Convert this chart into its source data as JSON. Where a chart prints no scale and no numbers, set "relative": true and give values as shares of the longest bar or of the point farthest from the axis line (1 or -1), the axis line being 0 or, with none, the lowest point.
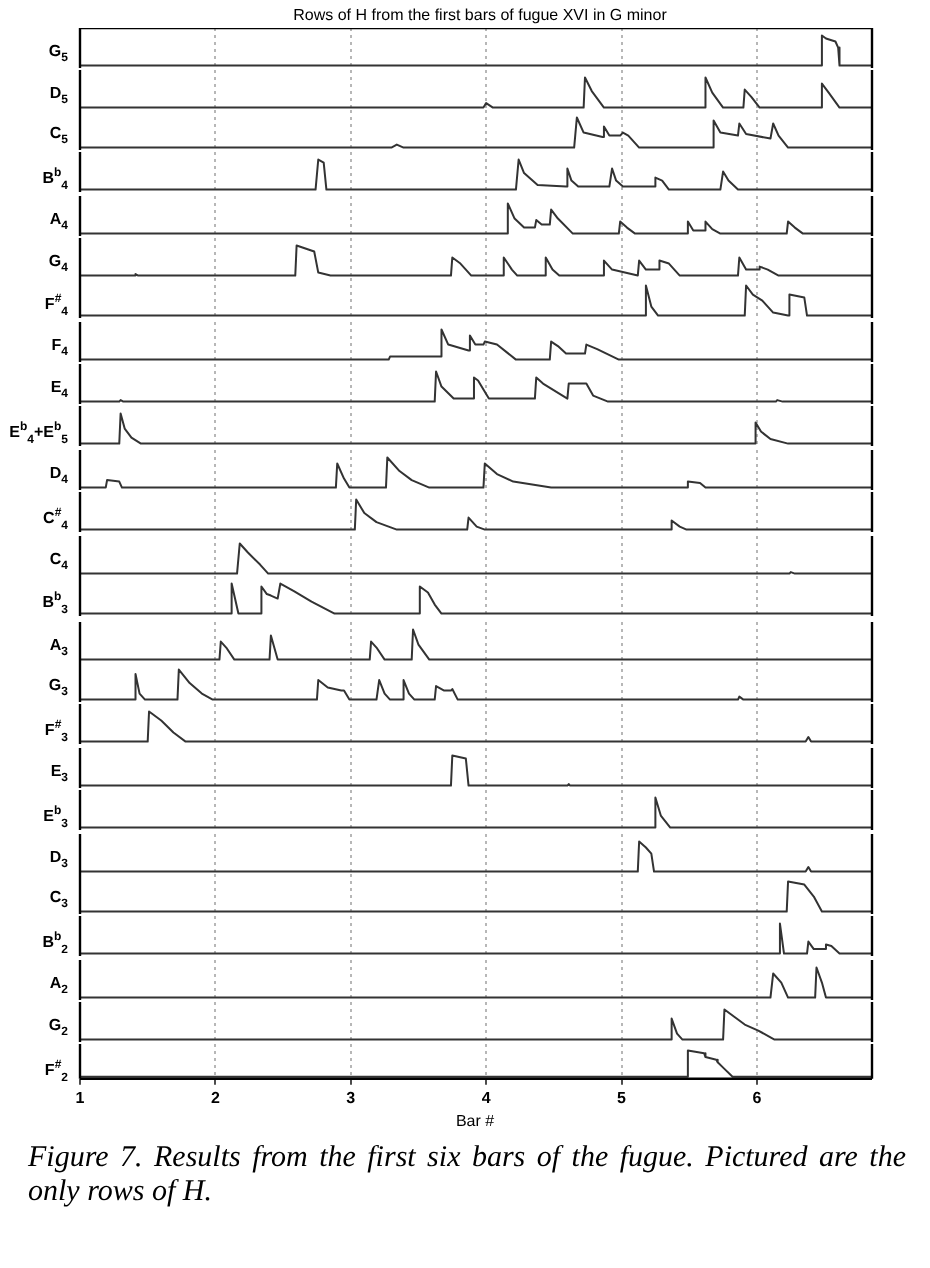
{
  "chart_data": [
    {
      "type": "line",
      "title": "Rows of H from the first bars of fugue XVI in G minor",
      "ylabel": "G$_{5}$",
      "color": "#333333",
      "relative": true,
      "grid": "x",
      "tick_labels": false,
      "xlim": [
        1,
        6.85
      ],
      "xticks": [
        1,
        2,
        3,
        4,
        5,
        6
      ],
      "x": [
        1,
        6.47,
        6.48,
        6.51,
        6.58,
        6.6,
        6.61,
        6.85
      ],
      "values": [
        0,
        0,
        1,
        0.9,
        0.8,
        0.6,
        0,
        0
      ]
    },
    {
      "type": "line",
      "ylabel": "D$_{5}$",
      "color": "#333333",
      "relative": true,
      "grid": "x",
      "tick_labels": false,
      "xlim": [
        1,
        6.85
      ],
      "xticks": [
        1,
        2,
        3,
        4,
        5,
        6
      ],
      "x": [
        1,
        3.98,
        4.0,
        4.05,
        4.72,
        4.73,
        4.78,
        4.87,
        5.61,
        5.62,
        5.67,
        5.75,
        5.9,
        5.91,
        5.96,
        6.02,
        6.47,
        6.48,
        6.53,
        6.61,
        6.85
      ],
      "values": [
        0,
        0,
        0.15,
        0,
        0,
        1,
        0.55,
        0,
        0,
        1,
        0.5,
        0,
        0,
        0.6,
        0.35,
        0,
        0,
        0.8,
        0.5,
        0,
        0
      ]
    },
    {
      "type": "line",
      "ylabel": "C$_{5}$",
      "color": "#333333",
      "relative": true,
      "grid": "x",
      "tick_labels": false,
      "xlim": [
        1,
        6.85
      ],
      "xticks": [
        1,
        2,
        3,
        4,
        5,
        6
      ],
      "x": [
        1,
        3.3,
        3.34,
        3.39,
        4.65,
        4.67,
        4.72,
        4.86,
        4.87,
        4.91,
        4.99,
        5.01,
        5.05,
        5.13,
        5.67,
        5.68,
        5.73,
        5.86,
        5.87,
        5.92,
        6.1,
        6.12,
        6.16,
        6.23,
        6.85
      ],
      "values": [
        0,
        0,
        0.1,
        0,
        0,
        1,
        0.5,
        0.35,
        0.7,
        0.4,
        0.4,
        0.5,
        0.4,
        0,
        0,
        0.9,
        0.5,
        0.4,
        0.8,
        0.45,
        0.3,
        0.8,
        0.4,
        0,
        0
      ]
    },
    {
      "type": "line",
      "ylabel": "B$^{b}$$_{4}$",
      "color": "#333333",
      "relative": true,
      "grid": "x",
      "tick_labels": false,
      "xlim": [
        1,
        6.85
      ],
      "xticks": [
        1,
        2,
        3,
        4,
        5,
        6
      ],
      "x": [
        1,
        2.74,
        2.76,
        2.8,
        2.82,
        4.22,
        4.24,
        4.28,
        4.38,
        4.59,
        4.6,
        4.63,
        4.68,
        4.91,
        4.93,
        4.96,
        5.01,
        5.24,
        5.25,
        5.3,
        5.35,
        5.73,
        5.75,
        5.79,
        5.86,
        6.85
      ],
      "values": [
        0,
        0,
        1,
        0.9,
        0,
        0,
        1,
        0.55,
        0.15,
        0.1,
        0.7,
        0.3,
        0.1,
        0.1,
        0.7,
        0.3,
        0.1,
        0.1,
        0.4,
        0.3,
        0,
        0,
        0.6,
        0.3,
        0,
        0
      ]
    },
    {
      "type": "line",
      "ylabel": "A$_{4}$",
      "color": "#333333",
      "relative": true,
      "grid": "x",
      "tick_labels": false,
      "xlim": [
        1,
        6.85
      ],
      "xticks": [
        1,
        2,
        3,
        4,
        5,
        6
      ],
      "x": [
        1,
        4.15,
        4.16,
        4.21,
        4.28,
        4.36,
        4.37,
        4.41,
        4.47,
        4.48,
        4.53,
        4.64,
        4.98,
        4.99,
        5.04,
        5.1,
        5.48,
        5.49,
        5.53,
        5.61,
        5.62,
        5.67,
        5.73,
        6.22,
        6.23,
        6.28,
        6.34,
        6.85
      ],
      "values": [
        0,
        0,
        1,
        0.5,
        0.2,
        0.2,
        0.45,
        0.3,
        0.3,
        0.8,
        0.5,
        0,
        0,
        0.4,
        0.2,
        0,
        0,
        0.4,
        0.1,
        0.1,
        0.4,
        0.15,
        0,
        0,
        0.4,
        0.2,
        0,
        0
      ]
    },
    {
      "type": "line",
      "ylabel": "G$_{4}$",
      "color": "#333333",
      "relative": true,
      "grid": "x",
      "tick_labels": false,
      "xlim": [
        1,
        6.85
      ],
      "xticks": [
        1,
        2,
        3,
        4,
        5,
        6
      ],
      "x": [
        1,
        1.4,
        1.41,
        1.43,
        2.59,
        2.6,
        2.73,
        2.76,
        2.85,
        3.74,
        3.75,
        3.81,
        3.89,
        4.12,
        4.13,
        4.19,
        4.23,
        4.43,
        4.44,
        4.49,
        4.54,
        4.86,
        4.87,
        4.93,
        5.12,
        5.13,
        5.18,
        5.27,
        5.28,
        5.35,
        5.43,
        5.86,
        5.87,
        5.92,
        6.01,
        6.02,
        6.08,
        6.16,
        6.85
      ],
      "values": [
        0,
        0,
        0.05,
        0,
        0,
        1,
        0.8,
        0.1,
        0,
        0,
        0.6,
        0.4,
        0,
        0,
        0.6,
        0.2,
        0,
        0,
        0.6,
        0.2,
        0,
        0,
        0.5,
        0.2,
        0,
        0.5,
        0.2,
        0.2,
        0.5,
        0.4,
        0,
        0,
        0.6,
        0.2,
        0.2,
        0.3,
        0.2,
        0,
        0
      ]
    },
    {
      "type": "line",
      "ylabel": "F$^{#}$$_{4}$",
      "color": "#333333",
      "relative": true,
      "grid": "x",
      "tick_labels": false,
      "xlim": [
        1,
        6.85
      ],
      "xticks": [
        1,
        2,
        3,
        4,
        5,
        6
      ],
      "x": [
        1,
        5.17,
        5.18,
        5.22,
        5.27,
        5.91,
        5.92,
        5.97,
        6.04,
        6.05,
        6.12,
        6.23,
        6.24,
        6.35,
        6.37,
        6.85
      ],
      "values": [
        0,
        0,
        1,
        0.3,
        0,
        0,
        1,
        0.7,
        0.5,
        0.5,
        0.1,
        0,
        0.7,
        0.6,
        0,
        0
      ]
    },
    {
      "type": "line",
      "ylabel": "F$_{4}$",
      "color": "#333333",
      "relative": true,
      "grid": "x",
      "tick_labels": false,
      "xlim": [
        1,
        6.85
      ],
      "xticks": [
        1,
        2,
        3,
        4,
        5,
        6
      ],
      "x": [
        1,
        3.28,
        3.29,
        3.66,
        3.67,
        3.72,
        3.87,
        3.88,
        3.92,
        3.98,
        3.99,
        4.08,
        4.22,
        4.47,
        4.48,
        4.53,
        4.59,
        4.73,
        4.74,
        4.82,
        4.98,
        6.85
      ],
      "values": [
        0,
        0,
        0.1,
        0.1,
        1,
        0.5,
        0.3,
        0.8,
        0.5,
        0.5,
        0.6,
        0.5,
        0,
        0,
        0.6,
        0.45,
        0.2,
        0.2,
        0.5,
        0.35,
        0,
        0
      ]
    },
    {
      "type": "line",
      "ylabel": "E$_{4}$",
      "color": "#333333",
      "relative": true,
      "grid": "x",
      "tick_labels": false,
      "xlim": [
        1,
        6.85
      ],
      "xticks": [
        1,
        2,
        3,
        4,
        5,
        6
      ],
      "x": [
        1,
        1.29,
        1.3,
        1.32,
        3.62,
        3.63,
        3.67,
        3.76,
        3.9,
        3.91,
        3.94,
        4.02,
        4.36,
        4.37,
        4.42,
        4.6,
        4.61,
        4.74,
        4.79,
        4.9,
        6.14,
        6.15,
        6.19,
        6.85
      ],
      "values": [
        0,
        0,
        0.05,
        0,
        0,
        1,
        0.5,
        0.1,
        0.1,
        0.8,
        0.7,
        0.1,
        0.1,
        0.8,
        0.6,
        0.1,
        0.6,
        0.6,
        0.2,
        0,
        0,
        0.05,
        0,
        0
      ]
    },
    {
      "type": "line",
      "ylabel": "E$^{b}$$_{4}$+E$^{b}$$_{5}$",
      "color": "#333333",
      "relative": true,
      "grid": "x",
      "tick_labels": false,
      "xlim": [
        1,
        6.85
      ],
      "xticks": [
        1,
        2,
        3,
        4,
        5,
        6
      ],
      "x": [
        1,
        1.29,
        1.3,
        1.33,
        1.38,
        1.45,
        5.98,
        5.99,
        6.03,
        6.1,
        6.23,
        6.85
      ],
      "values": [
        0,
        0,
        1,
        0.5,
        0.2,
        0,
        0,
        0.7,
        0.4,
        0.15,
        0,
        0
      ]
    },
    {
      "type": "line",
      "ylabel": "D$_{4}$",
      "color": "#333333",
      "relative": true,
      "grid": "x",
      "tick_labels": false,
      "xlim": [
        1,
        6.85
      ],
      "xticks": [
        1,
        2,
        3,
        4,
        5,
        6
      ],
      "x": [
        1,
        1.19,
        1.2,
        1.29,
        1.31,
        2.89,
        2.9,
        2.95,
        2.99,
        3.26,
        3.27,
        3.36,
        3.45,
        3.58,
        3.98,
        3.99,
        4.08,
        4.2,
        4.48,
        5.48,
        5.49,
        5.58,
        5.62,
        6.85
      ],
      "values": [
        0,
        0,
        0.25,
        0.2,
        0,
        0,
        0.8,
        0.3,
        0,
        0,
        1,
        0.55,
        0.25,
        0,
        0,
        0.8,
        0.45,
        0.2,
        0,
        0,
        0.2,
        0.15,
        0,
        0
      ]
    },
    {
      "type": "line",
      "ylabel": "C$^{#}$$_{4}$",
      "color": "#333333",
      "relative": true,
      "grid": "x",
      "tick_labels": false,
      "xlim": [
        1,
        6.85
      ],
      "xticks": [
        1,
        2,
        3,
        4,
        5,
        6
      ],
      "x": [
        1,
        3.03,
        3.04,
        3.1,
        3.19,
        3.34,
        3.86,
        3.87,
        3.93,
        3.99,
        5.36,
        5.37,
        5.43,
        5.48,
        6.85
      ],
      "values": [
        0,
        0,
        1,
        0.55,
        0.25,
        0,
        0,
        0.4,
        0.1,
        0,
        0,
        0.3,
        0.1,
        0,
        0
      ]
    },
    {
      "type": "line",
      "ylabel": "C$_{4}$",
      "color": "#333333",
      "relative": true,
      "grid": "x",
      "tick_labels": false,
      "xlim": [
        1,
        6.85
      ],
      "xticks": [
        1,
        2,
        3,
        4,
        5,
        6
      ],
      "x": [
        1,
        2.16,
        2.18,
        2.24,
        2.33,
        2.39,
        6.24,
        6.25,
        6.28,
        6.85
      ],
      "values": [
        0,
        0,
        1,
        0.7,
        0.3,
        0,
        0,
        0.05,
        0,
        0
      ]
    },
    {
      "type": "line",
      "ylabel": "B$^{b}$$_{3}$",
      "color": "#333333",
      "relative": true,
      "grid": "x",
      "tick_labels": false,
      "xlim": [
        1,
        6.85
      ],
      "xticks": [
        1,
        2,
        3,
        4,
        5,
        6
      ],
      "x": [
        1,
        2.11,
        2.12,
        2.17,
        2.33,
        2.34,
        2.38,
        2.41,
        2.46,
        2.48,
        2.58,
        2.71,
        2.88,
        3.5,
        3.51,
        3.57,
        3.62,
        3.67,
        6.85
      ],
      "values": [
        0,
        0,
        1,
        0,
        0,
        0.9,
        0.65,
        0.6,
        0.5,
        1,
        0.75,
        0.4,
        0,
        0,
        0.9,
        0.7,
        0.3,
        0,
        0
      ]
    },
    {
      "type": "line",
      "ylabel": "A$_{3}$",
      "color": "#333333",
      "relative": true,
      "grid": "x",
      "tick_labels": false,
      "xlim": [
        1,
        6.85
      ],
      "xticks": [
        1,
        2,
        3,
        4,
        5,
        6
      ],
      "x": [
        1,
        2.03,
        2.04,
        2.08,
        2.14,
        2.4,
        2.41,
        2.46,
        3.14,
        3.15,
        3.19,
        3.25,
        3.45,
        3.46,
        3.5,
        3.58,
        6.85
      ],
      "values": [
        0,
        0,
        0.6,
        0.4,
        0,
        0,
        0.8,
        0,
        0,
        0.6,
        0.4,
        0,
        0,
        1,
        0.5,
        0,
        0
      ]
    },
    {
      "type": "line",
      "ylabel": "G$_{3}$",
      "color": "#333333",
      "relative": true,
      "grid": "x",
      "tick_labels": false,
      "xlim": [
        1,
        6.85
      ],
      "xticks": [
        1,
        2,
        3,
        4,
        5,
        6
      ],
      "x": [
        1,
        1.4,
        1.41,
        1.44,
        1.48,
        1.72,
        1.73,
        1.81,
        1.9,
        1.98,
        2.75,
        2.76,
        2.83,
        2.93,
        2.95,
        2.99,
        3.19,
        3.21,
        3.25,
        3.29,
        3.38,
        3.39,
        3.43,
        3.47,
        3.62,
        3.63,
        3.69,
        3.74,
        3.75,
        3.79,
        5.86,
        5.87,
        5.9,
        6.85
      ],
      "values": [
        0,
        0,
        0.85,
        0.2,
        0,
        0,
        1,
        0.55,
        0.2,
        0,
        0,
        0.65,
        0.4,
        0.3,
        0.3,
        0,
        0,
        0.65,
        0.2,
        0,
        0,
        0.65,
        0.2,
        0,
        0,
        0.45,
        0.3,
        0.3,
        0.35,
        0,
        0,
        0.1,
        0,
        0
      ]
    },
    {
      "type": "line",
      "ylabel": "F$^{#}$$_{3}$",
      "color": "#333333",
      "relative": true,
      "grid": "x",
      "tick_labels": false,
      "xlim": [
        1,
        6.85
      ],
      "xticks": [
        1,
        2,
        3,
        4,
        5,
        6
      ],
      "x": [
        1,
        1.5,
        1.51,
        1.6,
        1.69,
        1.78,
        6.36,
        6.38,
        6.4,
        6.85
      ],
      "values": [
        0,
        0,
        1,
        0.7,
        0.3,
        0,
        0,
        0.15,
        0,
        0
      ]
    },
    {
      "type": "line",
      "ylabel": "E$_{3}$",
      "color": "#333333",
      "relative": true,
      "grid": "x",
      "tick_labels": false,
      "xlim": [
        1,
        6.85
      ],
      "xticks": [
        1,
        2,
        3,
        4,
        5,
        6
      ],
      "x": [
        1,
        3.74,
        3.75,
        3.85,
        3.87,
        4.6,
        4.61,
        4.62,
        6.85
      ],
      "values": [
        0,
        0,
        1,
        0.9,
        0,
        0,
        0.05,
        0,
        0
      ]
    },
    {
      "type": "line",
      "ylabel": "E$^{b}$$_{3}$",
      "color": "#333333",
      "relative": true,
      "grid": "x",
      "tick_labels": false,
      "xlim": [
        1,
        6.85
      ],
      "xticks": [
        1,
        2,
        3,
        4,
        5,
        6
      ],
      "x": [
        1,
        5.24,
        5.25,
        5.29,
        5.36,
        6.85
      ],
      "values": [
        0,
        0,
        1,
        0.4,
        0,
        0
      ]
    },
    {
      "type": "line",
      "ylabel": "D$_{3}$",
      "color": "#333333",
      "relative": true,
      "grid": "x",
      "tick_labels": false,
      "xlim": [
        1,
        6.85
      ],
      "xticks": [
        1,
        2,
        3,
        4,
        5,
        6
      ],
      "x": [
        1,
        5.12,
        5.13,
        5.18,
        5.22,
        5.24,
        6.36,
        6.38,
        6.4,
        6.85
      ],
      "values": [
        0,
        0,
        1,
        0.8,
        0.6,
        0,
        0,
        0.15,
        0,
        0
      ]
    },
    {
      "type": "line",
      "ylabel": "C$_{3}$",
      "color": "#333333",
      "relative": true,
      "grid": "x",
      "tick_labels": false,
      "xlim": [
        1,
        6.85
      ],
      "xticks": [
        1,
        2,
        3,
        4,
        5,
        6
      ],
      "x": [
        1,
        6.22,
        6.23,
        6.35,
        6.42,
        6.48,
        6.85
      ],
      "values": [
        0,
        0,
        1,
        0.9,
        0.5,
        0,
        0
      ]
    },
    {
      "type": "line",
      "ylabel": "B$^{b}$$_{2}$",
      "color": "#333333",
      "relative": true,
      "grid": "x",
      "tick_labels": false,
      "xlim": [
        1,
        6.85
      ],
      "xticks": [
        1,
        2,
        3,
        4,
        5,
        6
      ],
      "x": [
        1,
        6.16,
        6.17,
        6.2,
        6.37,
        6.38,
        6.42,
        6.5,
        6.51,
        6.55,
        6.61,
        6.85
      ],
      "values": [
        0,
        0,
        1,
        0,
        0,
        0.4,
        0.15,
        0.15,
        0.3,
        0.25,
        0,
        0
      ]
    },
    {
      "type": "line",
      "ylabel": "A$_{2}$",
      "color": "#333333",
      "relative": true,
      "grid": "x",
      "tick_labels": false,
      "xlim": [
        1,
        6.85
      ],
      "xticks": [
        1,
        2,
        3,
        4,
        5,
        6
      ],
      "x": [
        1,
        6.1,
        6.12,
        6.18,
        6.23,
        6.43,
        6.44,
        6.48,
        6.51,
        6.85
      ],
      "values": [
        0,
        0,
        0.8,
        0.5,
        0,
        0,
        1,
        0.5,
        0,
        0
      ]
    },
    {
      "type": "line",
      "ylabel": "G$_{2}$",
      "color": "#333333",
      "relative": true,
      "grid": "x",
      "tick_labels": false,
      "xlim": [
        1,
        6.85
      ],
      "xticks": [
        1,
        2,
        3,
        4,
        5,
        6
      ],
      "x": [
        1,
        5.36,
        5.37,
        5.41,
        5.45,
        5.75,
        5.76,
        5.82,
        5.91,
        6.01,
        6.13,
        6.85
      ],
      "values": [
        0,
        0,
        0.7,
        0.2,
        0,
        0,
        1,
        0.8,
        0.5,
        0.3,
        0,
        0
      ]
    },
    {
      "type": "line",
      "ylabel": "F$^{#}$$_{2}$",
      "xlabel": "Bar #",
      "annotations": [
        "Figure 7. Results from the first six bars of the fugue. Pictured are the only rows of H."
      ],
      "color": "#333333",
      "relative": true,
      "grid": "x",
      "tick_labels": "x",
      "xlim": [
        1,
        6.85
      ],
      "xticks": [
        1,
        2,
        3,
        4,
        5,
        6
      ],
      "x": [
        1,
        5.48,
        5.49,
        5.61,
        5.62,
        5.7,
        5.71,
        5.76,
        5.82,
        6.85
      ],
      "values": [
        0,
        0,
        1,
        0.9,
        0.75,
        0.65,
        0.55,
        0.3,
        0,
        0
      ]
    }
  ]
}
